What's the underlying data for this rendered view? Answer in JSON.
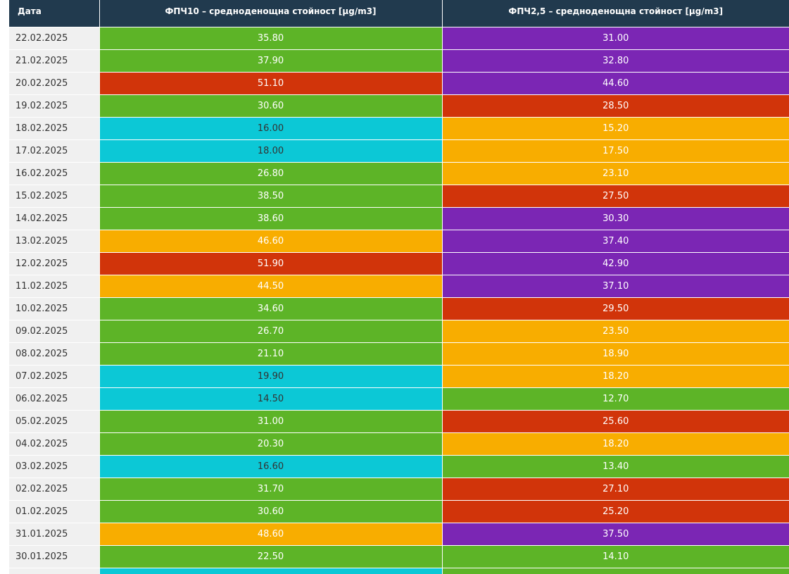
{
  "colors": {
    "header": "#213a4e",
    "green": "#5db427",
    "cyan": "#0cc8d6",
    "orange": "#f8ad00",
    "red": "#d1340a",
    "purple": "#7b26b4",
    "date_bg": "#f0f0f0"
  },
  "table": {
    "headers": {
      "date": "Дата",
      "pm10": "ФПЧ10 – средноденощна стойност [µg/m3]",
      "pm25": "ФПЧ2,5 – средноденощна стойност [µg/m3]"
    },
    "rows": [
      {
        "date": "22.02.2025",
        "pm10": "35.80",
        "pm10_color": "green",
        "pm25": "31.00",
        "pm25_color": "purple"
      },
      {
        "date": "21.02.2025",
        "pm10": "37.90",
        "pm10_color": "green",
        "pm25": "32.80",
        "pm25_color": "purple"
      },
      {
        "date": "20.02.2025",
        "pm10": "51.10",
        "pm10_color": "red",
        "pm25": "44.60",
        "pm25_color": "purple"
      },
      {
        "date": "19.02.2025",
        "pm10": "30.60",
        "pm10_color": "green",
        "pm25": "28.50",
        "pm25_color": "red"
      },
      {
        "date": "18.02.2025",
        "pm10": "16.00",
        "pm10_color": "cyan",
        "pm25": "15.20",
        "pm25_color": "orange"
      },
      {
        "date": "17.02.2025",
        "pm10": "18.00",
        "pm10_color": "cyan",
        "pm25": "17.50",
        "pm25_color": "orange"
      },
      {
        "date": "16.02.2025",
        "pm10": "26.80",
        "pm10_color": "green",
        "pm25": "23.10",
        "pm25_color": "orange"
      },
      {
        "date": "15.02.2025",
        "pm10": "38.50",
        "pm10_color": "green",
        "pm25": "27.50",
        "pm25_color": "red"
      },
      {
        "date": "14.02.2025",
        "pm10": "38.60",
        "pm10_color": "green",
        "pm25": "30.30",
        "pm25_color": "purple"
      },
      {
        "date": "13.02.2025",
        "pm10": "46.60",
        "pm10_color": "orange",
        "pm25": "37.40",
        "pm25_color": "purple"
      },
      {
        "date": "12.02.2025",
        "pm10": "51.90",
        "pm10_color": "red",
        "pm25": "42.90",
        "pm25_color": "purple"
      },
      {
        "date": "11.02.2025",
        "pm10": "44.50",
        "pm10_color": "orange",
        "pm25": "37.10",
        "pm25_color": "purple"
      },
      {
        "date": "10.02.2025",
        "pm10": "34.60",
        "pm10_color": "green",
        "pm25": "29.50",
        "pm25_color": "red"
      },
      {
        "date": "09.02.2025",
        "pm10": "26.70",
        "pm10_color": "green",
        "pm25": "23.50",
        "pm25_color": "orange"
      },
      {
        "date": "08.02.2025",
        "pm10": "21.10",
        "pm10_color": "green",
        "pm25": "18.90",
        "pm25_color": "orange"
      },
      {
        "date": "07.02.2025",
        "pm10": "19.90",
        "pm10_color": "cyan",
        "pm25": "18.20",
        "pm25_color": "orange"
      },
      {
        "date": "06.02.2025",
        "pm10": "14.50",
        "pm10_color": "cyan",
        "pm25": "12.70",
        "pm25_color": "green"
      },
      {
        "date": "05.02.2025",
        "pm10": "31.00",
        "pm10_color": "green",
        "pm25": "25.60",
        "pm25_color": "red"
      },
      {
        "date": "04.02.2025",
        "pm10": "20.30",
        "pm10_color": "green",
        "pm25": "18.20",
        "pm25_color": "orange"
      },
      {
        "date": "03.02.2025",
        "pm10": "16.60",
        "pm10_color": "cyan",
        "pm25": "13.40",
        "pm25_color": "green"
      },
      {
        "date": "02.02.2025",
        "pm10": "31.70",
        "pm10_color": "green",
        "pm25": "27.10",
        "pm25_color": "red"
      },
      {
        "date": "01.02.2025",
        "pm10": "30.60",
        "pm10_color": "green",
        "pm25": "25.20",
        "pm25_color": "red"
      },
      {
        "date": "31.01.2025",
        "pm10": "48.60",
        "pm10_color": "orange",
        "pm25": "37.50",
        "pm25_color": "purple"
      },
      {
        "date": "30.01.2025",
        "pm10": "22.50",
        "pm10_color": "green",
        "pm25": "14.10",
        "pm25_color": "green"
      },
      {
        "date": "",
        "pm10": "",
        "pm10_color": "cyan",
        "pm25": "",
        "pm25_color": "green"
      }
    ]
  }
}
